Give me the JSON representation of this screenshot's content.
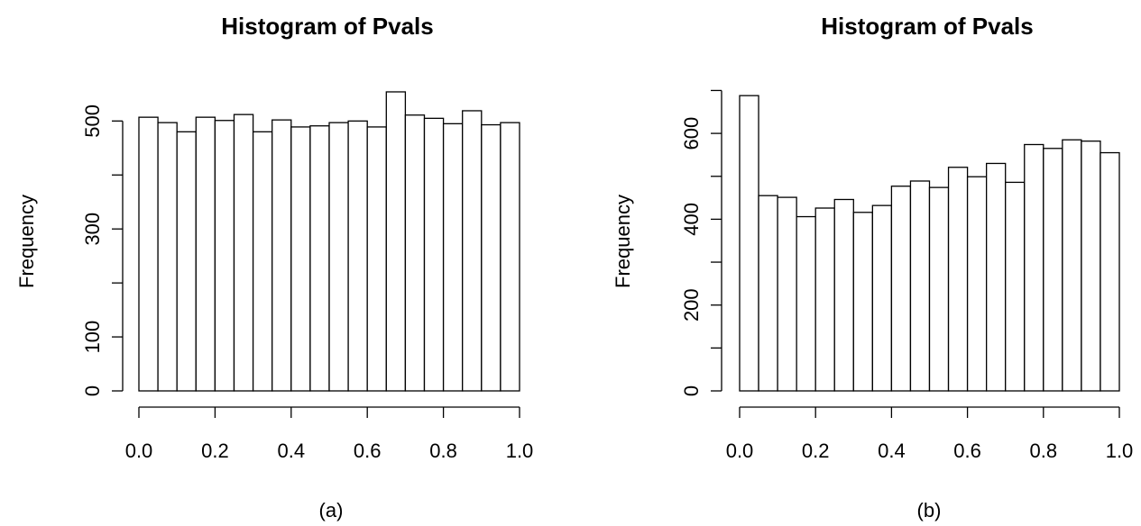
{
  "chart_data": [
    {
      "type": "bar",
      "title": "Histogram of Pvals",
      "xlabel": "",
      "ylabel": "Frequency",
      "panel_label": "(a)",
      "bin_edges": [
        0.0,
        0.05,
        0.1,
        0.15,
        0.2,
        0.25,
        0.3,
        0.35,
        0.4,
        0.45,
        0.5,
        0.55,
        0.6,
        0.65,
        0.7,
        0.75,
        0.8,
        0.85,
        0.9,
        0.95,
        1.0
      ],
      "values": [
        507,
        497,
        480,
        507,
        501,
        512,
        480,
        502,
        489,
        491,
        497,
        500,
        489,
        554,
        511,
        505,
        495,
        519,
        493,
        497
      ],
      "xticks": [
        0.0,
        0.2,
        0.4,
        0.6,
        0.8,
        1.0
      ],
      "xtick_labels": [
        "0.0",
        "0.2",
        "0.4",
        "0.6",
        "0.8",
        "1.0"
      ],
      "yticks": [
        0,
        100,
        200,
        300,
        400,
        500
      ],
      "ytick_labels": [
        "0",
        "100",
        "",
        "300",
        "",
        "500"
      ],
      "xlim": [
        0,
        1
      ],
      "ylim": [
        0,
        554
      ]
    },
    {
      "type": "bar",
      "title": "Histogram of Pvals",
      "xlabel": "",
      "ylabel": "Frequency",
      "panel_label": "(b)",
      "bin_edges": [
        0.0,
        0.05,
        0.1,
        0.15,
        0.2,
        0.25,
        0.3,
        0.35,
        0.4,
        0.45,
        0.5,
        0.55,
        0.6,
        0.65,
        0.7,
        0.75,
        0.8,
        0.85,
        0.9,
        0.95,
        1.0
      ],
      "values": [
        688,
        455,
        451,
        406,
        426,
        446,
        416,
        432,
        477,
        489,
        474,
        521,
        499,
        530,
        486,
        574,
        565,
        585,
        582,
        555
      ],
      "xticks": [
        0.0,
        0.2,
        0.4,
        0.6,
        0.8,
        1.0
      ],
      "xtick_labels": [
        "0.0",
        "0.2",
        "0.4",
        "0.6",
        "0.8",
        "1.0"
      ],
      "yticks": [
        0,
        100,
        200,
        300,
        400,
        500,
        600,
        700
      ],
      "ytick_labels": [
        "0",
        "",
        "200",
        "",
        "400",
        "",
        "600",
        ""
      ],
      "xlim": [
        0,
        1
      ],
      "ylim": [
        0,
        700
      ]
    }
  ]
}
